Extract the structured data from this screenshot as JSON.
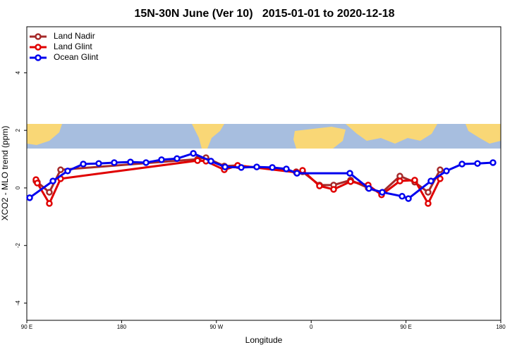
{
  "chart_data": {
    "type": "line",
    "title": "15N-30N June (Ver 10)   2015-01-01 to 2020-12-18",
    "x_label": "Longitude",
    "y_label": "XCO2 - MLO trend (ppm)",
    "xlim": [
      90,
      540
    ],
    "ylim": [
      -4.6,
      5.6
    ],
    "xticks": [
      {
        "value": 90,
        "label": "90 E"
      },
      {
        "value": 180,
        "label": "180"
      },
      {
        "value": 270,
        "label": "90 W"
      },
      {
        "value": 360,
        "label": "0"
      },
      {
        "value": 450,
        "label": "90 E"
      },
      {
        "value": 540,
        "label": "180"
      }
    ],
    "yticks": [
      4,
      2,
      0,
      -2,
      -4
    ],
    "legend": "top-left",
    "series": [
      {
        "name": "Land Nadir",
        "color": "#a52a2a",
        "x": [
          98.7,
          100.0,
          111.4,
          122.1,
          252.1,
          260.1,
          277.5,
          290.2,
          345.8,
          351.8,
          367.9,
          381.3,
          397.4,
          414.1,
          426.8,
          444.2,
          458.3,
          471.0,
          482.4
        ],
        "values": [
          0.24,
          0.2,
          -0.15,
          0.63,
          1.0,
          1.05,
          0.76,
          0.78,
          0.56,
          0.56,
          0.1,
          0.1,
          0.27,
          0.0,
          -0.17,
          0.41,
          0.2,
          -0.15,
          0.63
        ]
      },
      {
        "name": "Land Glint",
        "color": "#e00000",
        "x": [
          98.7,
          100.0,
          111.4,
          122.1,
          252.1,
          260.1,
          277.5,
          290.2,
          345.8,
          351.8,
          367.9,
          381.3,
          397.4,
          414.1,
          426.8,
          444.2,
          458.3,
          471.0,
          482.4
        ],
        "values": [
          0.29,
          0.17,
          -0.54,
          0.32,
          0.95,
          0.93,
          0.63,
          0.78,
          0.54,
          0.61,
          0.07,
          -0.05,
          0.22,
          0.1,
          -0.24,
          0.24,
          0.27,
          -0.54,
          0.32
        ]
      },
      {
        "name": "Ocean Glint",
        "color": "#0000ee",
        "x": [
          92.7,
          114.8,
          128.8,
          143.6,
          158.3,
          173.0,
          188.4,
          203.2,
          217.9,
          232.6,
          248.1,
          264.8,
          278.2,
          293.6,
          308.3,
          323.1,
          336.4,
          346.5,
          396.7,
          414.8,
          427.5,
          446.3,
          452.3,
          473.7,
          488.4,
          503.2,
          517.9,
          532.6
        ],
        "values": [
          -0.34,
          0.24,
          0.59,
          0.83,
          0.85,
          0.88,
          0.9,
          0.88,
          0.98,
          1.02,
          1.2,
          0.93,
          0.73,
          0.71,
          0.73,
          0.71,
          0.66,
          0.51,
          0.51,
          -0.02,
          -0.15,
          -0.29,
          -0.37,
          0.24,
          0.59,
          0.83,
          0.85,
          0.88
        ]
      }
    ]
  }
}
